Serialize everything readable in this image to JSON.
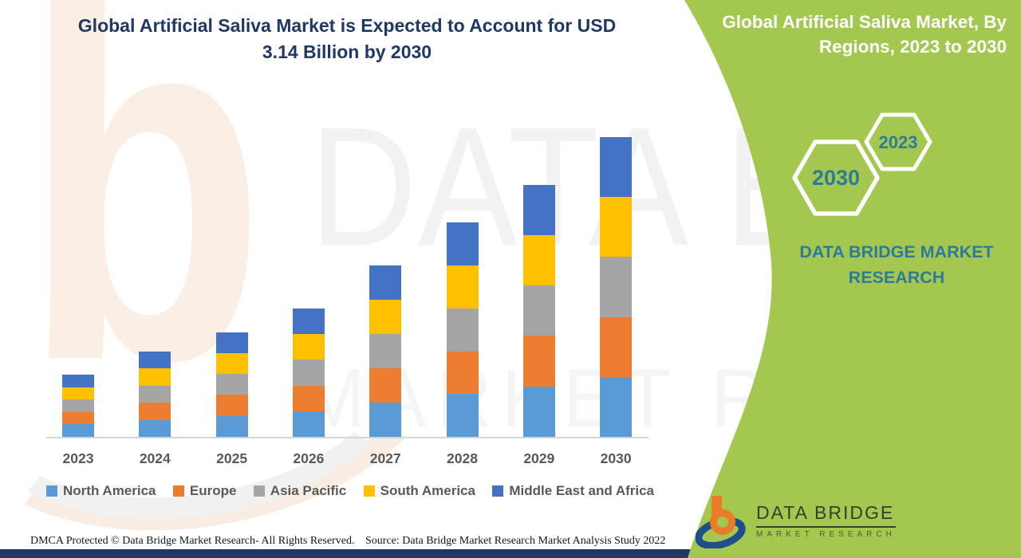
{
  "titles": {
    "main_line1": "Global Artificial Saliva Market is Expected to Account for USD",
    "main_line2": "3.14 Billion by 2030",
    "side_line1": "Global Artificial Saliva Market, By",
    "side_line2": "Regions, 2023 to 2030"
  },
  "green_panel": {
    "bg_color": "#A4C74F",
    "hex_left_year": "2030",
    "hex_right_year": "2023",
    "hex_text_color": "#2E7B99",
    "brand_line1": "DATA BRIDGE MARKET",
    "brand_line2": "RESEARCH",
    "brand_text_color": "#2E7B99"
  },
  "logo": {
    "name_line": "DATA BRIDGE",
    "sub_line": "MARKET RESEARCH",
    "orange": "#E97C26",
    "navy": "#1F4E8C"
  },
  "watermarks": {
    "letter": "b",
    "row1": "DATA BRI",
    "row2": "MARKET RESEAR"
  },
  "footer": {
    "dmca": "DMCA Protected © Data Bridge Market Research- All Rights Reserved.",
    "source": "Source: Data Bridge Market Research Market Analysis Study 2022",
    "bar_color": "#203864"
  },
  "chart_data": {
    "type": "bar",
    "stacked": true,
    "title": "Global Artificial Saliva Market, By Regions, 2023 to 2030",
    "unit": "USD Billion",
    "categories": [
      "2023",
      "2024",
      "2025",
      "2026",
      "2027",
      "2028",
      "2029",
      "2030"
    ],
    "series": [
      {
        "name": "North America",
        "color": "#5B9BD5",
        "values": [
          0.13,
          0.18,
          0.22,
          0.27,
          0.36,
          0.45,
          0.53,
          0.63
        ]
      },
      {
        "name": "Europe",
        "color": "#ED7D31",
        "values": [
          0.13,
          0.18,
          0.22,
          0.27,
          0.36,
          0.45,
          0.53,
          0.63
        ]
      },
      {
        "name": "Asia Pacific",
        "color": "#A5A5A5",
        "values": [
          0.13,
          0.18,
          0.22,
          0.27,
          0.36,
          0.45,
          0.53,
          0.63
        ]
      },
      {
        "name": "South America",
        "color": "#FFC000",
        "values": [
          0.13,
          0.18,
          0.22,
          0.27,
          0.36,
          0.45,
          0.53,
          0.63
        ]
      },
      {
        "name": "Middle East and Africa",
        "color": "#4472C4",
        "values": [
          0.13,
          0.18,
          0.22,
          0.27,
          0.36,
          0.45,
          0.53,
          0.63
        ]
      }
    ],
    "totals_estimated": [
      0.66,
      0.9,
      1.12,
      1.35,
      1.79,
      2.24,
      2.67,
      3.14
    ],
    "xlabel": "",
    "ylabel": "",
    "ylim": [
      0,
      3.2
    ],
    "gridlines": false,
    "legend_position": "bottom",
    "axis": {
      "baseline_color": "#D6D6D6",
      "label_color": "#595959"
    }
  }
}
